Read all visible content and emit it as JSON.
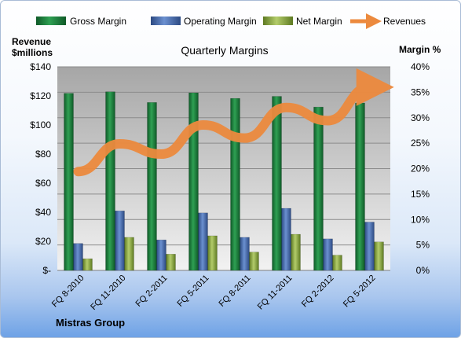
{
  "chart_data": {
    "type": "bar",
    "title": "Quarterly Margins",
    "ylabel_left": "Revenue $millions",
    "ylabel_left_lines": [
      "Revenue",
      "$millions"
    ],
    "ylabel_right": "Margin %",
    "footer": "Mistras Group",
    "categories": [
      "FQ 8-2010",
      "FQ 11-2010",
      "FQ 2-2011",
      "FQ 5-2011",
      "FQ 8-2011",
      "FQ 11-2011",
      "FQ 2-2012",
      "FQ 5-2012"
    ],
    "left_axis": {
      "min": 0,
      "max": 140,
      "step": 20,
      "tick_labels": [
        "$-",
        "$20",
        "$40",
        "$60",
        "$80",
        "$100",
        "$120",
        "$140"
      ]
    },
    "right_axis": {
      "min": 0,
      "max": 40,
      "step": 5,
      "tick_labels": [
        "0%",
        "5%",
        "10%",
        "15%",
        "20%",
        "25%",
        "30%",
        "35%",
        "40%"
      ]
    },
    "series": [
      {
        "name": "Gross Margin",
        "axis": "right",
        "unit": "%",
        "color": "#1e7a3c",
        "values": [
          34.8,
          35.1,
          33.0,
          34.9,
          33.8,
          34.2,
          32.1,
          32.9
        ]
      },
      {
        "name": "Operating Margin",
        "axis": "right",
        "unit": "%",
        "color": "#4a6fb0",
        "values": [
          5.3,
          11.7,
          6.0,
          11.3,
          6.5,
          12.2,
          6.2,
          9.5
        ]
      },
      {
        "name": "Net Margin",
        "axis": "right",
        "unit": "%",
        "color": "#8fa84a",
        "values": [
          2.3,
          6.5,
          3.2,
          6.8,
          3.6,
          7.1,
          3.0,
          5.6
        ]
      },
      {
        "name": "Revenues",
        "axis": "left",
        "unit": "$ millions",
        "type": "line",
        "color": "#ec8a3e",
        "values": [
          68,
          87,
          80,
          100,
          91,
          112,
          103,
          126
        ]
      }
    ],
    "grid": true,
    "legend": "top"
  }
}
